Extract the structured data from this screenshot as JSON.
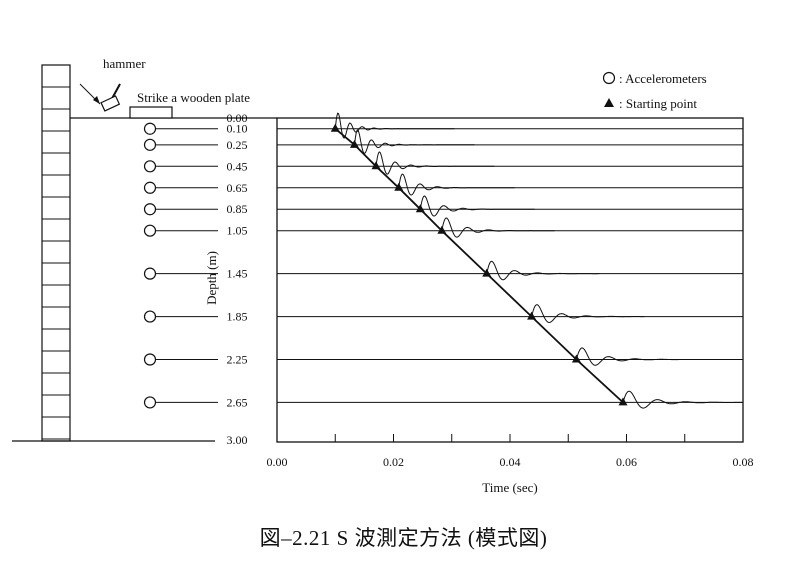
{
  "caption": "図–2.21  S 波測定方法 (模式図)",
  "chart_data": {
    "type": "line",
    "title": "",
    "xlabel": "Time (sec)",
    "ylabel": "Depth (m)",
    "xlim": [
      0.0,
      0.08
    ],
    "ylim": [
      3.0,
      0.0
    ],
    "x_ticks": [
      "0.00",
      "0.02",
      "0.04",
      "0.06",
      "0.08"
    ],
    "depth_labels": [
      "0.00",
      "0.10",
      "0.25",
      "0.45",
      "0.65",
      "0.85",
      "1.05",
      "1.45",
      "1.85",
      "2.25",
      "2.65",
      "3.00"
    ],
    "accelerometer_depths": [
      0.1,
      0.25,
      0.45,
      0.65,
      0.85,
      1.05,
      1.45,
      1.85,
      2.25,
      2.65
    ],
    "starting_points": [
      {
        "depth": 0.1,
        "time": 0.01
      },
      {
        "depth": 0.25,
        "time": 0.0133
      },
      {
        "depth": 0.45,
        "time": 0.017
      },
      {
        "depth": 0.65,
        "time": 0.0209
      },
      {
        "depth": 0.85,
        "time": 0.0246
      },
      {
        "depth": 1.05,
        "time": 0.0283
      },
      {
        "depth": 1.45,
        "time": 0.036
      },
      {
        "depth": 1.85,
        "time": 0.0437
      },
      {
        "depth": 2.25,
        "time": 0.0514
      },
      {
        "depth": 2.65,
        "time": 0.0594
      }
    ],
    "grid": false,
    "legend_placement": "top-right"
  },
  "legend": {
    "accelerometers": ": Accelerometers",
    "starting_point": ": Starting point"
  },
  "schematic": {
    "hammer_label": "hammer",
    "plate_label": "Strike a wooden plate"
  }
}
